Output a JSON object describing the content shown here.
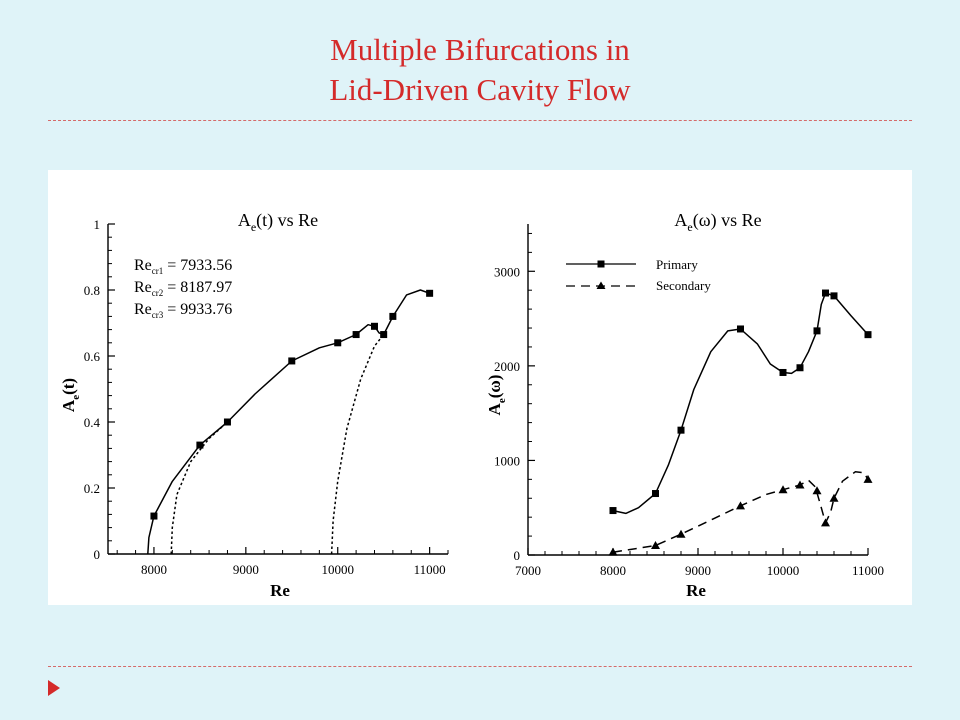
{
  "slide": {
    "title_line1": "Multiple Bifurcations in",
    "title_line2": "Lid-Driven Cavity Flow",
    "accent_color": "#d42a2a",
    "background_color": "#dff3f8"
  },
  "chart_data": [
    {
      "type": "line",
      "title": "A_e(t) vs Re",
      "xlabel": "Re",
      "ylabel": "A_e(t)",
      "xlim": [
        7500,
        11200
      ],
      "ylim": [
        0,
        1
      ],
      "xticks": [
        8000,
        9000,
        10000,
        11000
      ],
      "xtick_labels": [
        "8000",
        "9000",
        "10000",
        "11000"
      ],
      "yticks": [
        0,
        0.2,
        0.4,
        0.6,
        0.8,
        1
      ],
      "ytick_labels": [
        "0",
        "0.2",
        "0.4",
        "0.6",
        "0.8",
        "1"
      ],
      "annotations": [
        {
          "text": "Re_cr1 = 7933.56"
        },
        {
          "text": "Re_cr2 = 8187.97"
        },
        {
          "text": "Re_cr3 = 9933.76"
        }
      ],
      "series": [
        {
          "style": "solid",
          "marker": "square",
          "points": [
            [
              8000,
              0.115
            ],
            [
              8500,
              0.33
            ],
            [
              8800,
              0.4
            ],
            [
              9500,
              0.585
            ],
            [
              10000,
              0.64
            ],
            [
              10200,
              0.665
            ],
            [
              10400,
              0.69
            ],
            [
              10500,
              0.665
            ],
            [
              10600,
              0.72
            ],
            [
              11000,
              0.79
            ]
          ],
          "curve": [
            [
              7933.56,
              0
            ],
            [
              7945,
              0.05
            ],
            [
              8000,
              0.115
            ],
            [
              8200,
              0.22
            ],
            [
              8500,
              0.33
            ],
            [
              8800,
              0.4
            ],
            [
              9100,
              0.485
            ],
            [
              9500,
              0.585
            ],
            [
              9800,
              0.625
            ],
            [
              10000,
              0.64
            ],
            [
              10200,
              0.665
            ],
            [
              10330,
              0.695
            ],
            [
              10400,
              0.69
            ],
            [
              10450,
              0.67
            ],
            [
              10500,
              0.665
            ],
            [
              10600,
              0.72
            ],
            [
              10750,
              0.785
            ],
            [
              10900,
              0.8
            ],
            [
              11000,
              0.79
            ]
          ]
        },
        {
          "style": "dotted",
          "marker": "none",
          "curve": [
            [
              8187.97,
              0
            ],
            [
              8200,
              0.08
            ],
            [
              8250,
              0.18
            ],
            [
              8400,
              0.28
            ],
            [
              8600,
              0.35
            ],
            [
              8800,
              0.4
            ]
          ]
        },
        {
          "style": "dotted",
          "marker": "none",
          "curve": [
            [
              9933.76,
              0
            ],
            [
              9950,
              0.1
            ],
            [
              10000,
              0.22
            ],
            [
              10100,
              0.38
            ],
            [
              10250,
              0.53
            ],
            [
              10400,
              0.63
            ],
            [
              10500,
              0.665
            ]
          ]
        }
      ]
    },
    {
      "type": "line",
      "title": "A_e(ω) vs Re",
      "xlabel": "Re",
      "ylabel": "A_e(ω)",
      "xlim": [
        7000,
        11000
      ],
      "ylim": [
        0,
        3500
      ],
      "xticks": [
        7000,
        8000,
        9000,
        10000,
        11000
      ],
      "xtick_labels": [
        "7000",
        "8000",
        "9000",
        "10000",
        "11000"
      ],
      "yticks": [
        0,
        1000,
        2000,
        3000
      ],
      "ytick_labels": [
        "0",
        "1000",
        "2000",
        "3000"
      ],
      "legend": "top-left",
      "series": [
        {
          "name": "Primary",
          "style": "solid",
          "marker": "square",
          "points": [
            [
              8000,
              470
            ],
            [
              8500,
              650
            ],
            [
              8800,
              1320
            ],
            [
              9500,
              2390
            ],
            [
              10000,
              1930
            ],
            [
              10200,
              1980
            ],
            [
              10400,
              2370
            ],
            [
              10500,
              2770
            ],
            [
              10600,
              2740
            ],
            [
              11000,
              2330
            ]
          ],
          "curve": [
            [
              8000,
              470
            ],
            [
              8150,
              440
            ],
            [
              8300,
              500
            ],
            [
              8500,
              650
            ],
            [
              8650,
              950
            ],
            [
              8800,
              1320
            ],
            [
              8950,
              1750
            ],
            [
              9150,
              2150
            ],
            [
              9350,
              2370
            ],
            [
              9500,
              2390
            ],
            [
              9700,
              2230
            ],
            [
              9850,
              2020
            ],
            [
              10000,
              1930
            ],
            [
              10100,
              1920
            ],
            [
              10200,
              1980
            ],
            [
              10300,
              2150
            ],
            [
              10400,
              2370
            ],
            [
              10450,
              2650
            ],
            [
              10500,
              2770
            ],
            [
              10600,
              2740
            ],
            [
              10800,
              2530
            ],
            [
              11000,
              2330
            ]
          ]
        },
        {
          "name": "Secondary",
          "style": "dashed",
          "marker": "triangle",
          "points": [
            [
              8000,
              30
            ],
            [
              8500,
              100
            ],
            [
              8800,
              220
            ],
            [
              9500,
              520
            ],
            [
              10000,
              690
            ],
            [
              10200,
              740
            ],
            [
              10400,
              680
            ],
            [
              10500,
              340
            ],
            [
              10600,
              600
            ],
            [
              11000,
              800
            ]
          ],
          "curve": [
            [
              8000,
              30
            ],
            [
              8500,
              100
            ],
            [
              8800,
              220
            ],
            [
              9200,
              390
            ],
            [
              9500,
              520
            ],
            [
              9800,
              640
            ],
            [
              10000,
              690
            ],
            [
              10200,
              740
            ],
            [
              10300,
              790
            ],
            [
              10380,
              720
            ],
            [
              10450,
              500
            ],
            [
              10500,
              340
            ],
            [
              10560,
              450
            ],
            [
              10600,
              600
            ],
            [
              10700,
              780
            ],
            [
              10850,
              880
            ],
            [
              10950,
              870
            ],
            [
              11000,
              800
            ]
          ]
        }
      ]
    }
  ]
}
